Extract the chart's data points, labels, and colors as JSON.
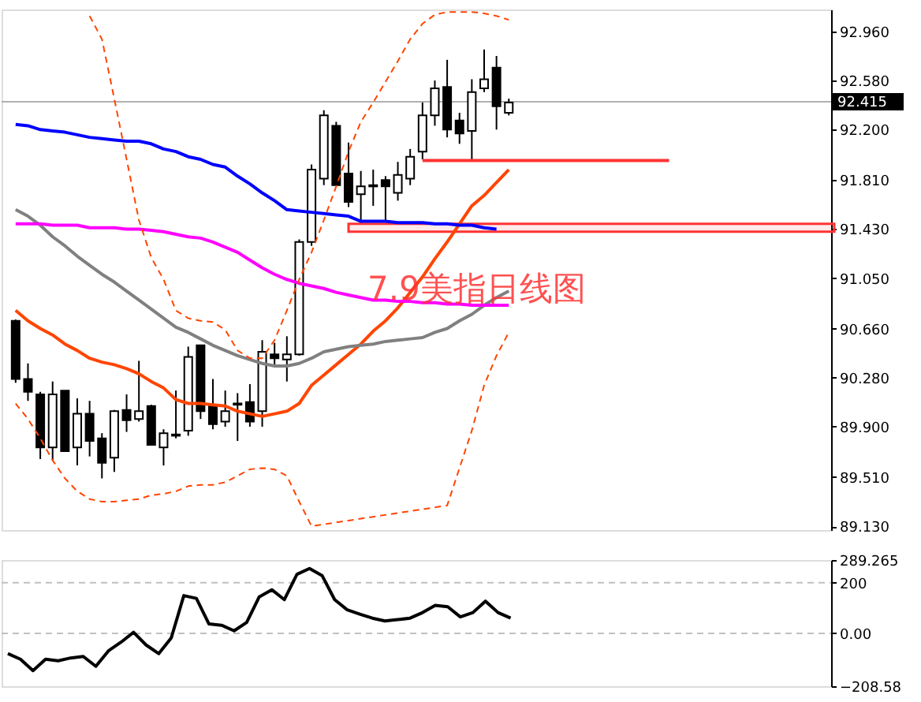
{
  "chart_data": [
    {
      "type": "candlestick",
      "categories": [
        null,
        null,
        null,
        null,
        null,
        null,
        null,
        null,
        null,
        null,
        null,
        null,
        null,
        null,
        null,
        null,
        null,
        null,
        null,
        null,
        null,
        null,
        null,
        null,
        null,
        null,
        null,
        null,
        null,
        null,
        null,
        null,
        null,
        null,
        null,
        null,
        null,
        null,
        null,
        null,
        null,
        null,
        null,
        null,
        null,
        null,
        null,
        null,
        null,
        null,
        null,
        null,
        null,
        null,
        null,
        null,
        null,
        null,
        null,
        null,
        null,
        null,
        null,
        null,
        null,
        null
      ],
      "ohlc": [
        [
          90.72,
          90.73,
          90.24,
          90.27
        ],
        [
          90.27,
          90.39,
          90.1,
          90.17
        ],
        [
          90.15,
          90.17,
          89.65,
          89.74
        ],
        [
          89.74,
          90.25,
          89.64,
          90.15
        ],
        [
          90.18,
          90.18,
          89.71,
          89.71
        ],
        [
          89.74,
          90.12,
          89.6,
          90.0
        ],
        [
          90.0,
          90.1,
          89.67,
          89.79
        ],
        [
          89.81,
          89.85,
          89.5,
          89.62
        ],
        [
          89.66,
          90.03,
          89.55,
          90.02
        ],
        [
          90.03,
          90.15,
          89.86,
          89.95
        ],
        [
          89.96,
          90.41,
          89.94,
          90.02
        ],
        [
          90.06,
          90.07,
          89.76,
          89.76
        ],
        [
          89.74,
          89.88,
          89.6,
          89.85
        ],
        [
          89.83,
          90.18,
          89.81,
          89.84
        ],
        [
          89.87,
          90.52,
          89.83,
          90.44
        ],
        [
          90.53,
          90.53,
          89.96,
          90.02
        ],
        [
          90.06,
          90.27,
          89.88,
          89.92
        ],
        [
          89.94,
          90.18,
          89.9,
          90.02
        ],
        [
          90.08,
          90.16,
          89.79,
          90.07
        ],
        [
          90.09,
          90.23,
          89.9,
          89.94
        ],
        [
          90.02,
          90.57,
          89.9,
          90.48
        ],
        [
          90.46,
          90.55,
          90.37,
          90.43
        ],
        [
          90.42,
          90.6,
          90.25,
          90.46
        ],
        [
          90.46,
          91.35,
          90.45,
          91.33
        ],
        [
          91.33,
          91.93,
          91.3,
          91.89
        ],
        [
          91.82,
          92.35,
          91.77,
          92.31
        ],
        [
          92.23,
          92.26,
          91.77,
          91.77
        ],
        [
          91.86,
          92.1,
          91.6,
          91.64
        ],
        [
          91.7,
          91.88,
          91.48,
          91.76
        ],
        [
          91.76,
          91.89,
          91.61,
          91.77
        ],
        [
          91.81,
          91.84,
          91.5,
          91.76
        ],
        [
          91.71,
          91.95,
          91.65,
          91.85
        ],
        [
          91.82,
          92.05,
          91.77,
          91.99
        ],
        [
          92.03,
          92.41,
          91.97,
          92.31
        ],
        [
          92.31,
          92.58,
          92.23,
          92.52
        ],
        [
          92.53,
          92.74,
          92.14,
          92.2
        ],
        [
          92.27,
          92.33,
          92.09,
          92.17
        ],
        [
          92.19,
          92.59,
          91.97,
          92.49
        ],
        [
          92.52,
          92.82,
          92.49,
          92.59
        ],
        [
          92.68,
          92.77,
          92.2,
          92.38
        ],
        [
          92.33,
          92.44,
          92.31,
          92.41
        ],
        null,
        null,
        null,
        null,
        null,
        null,
        null,
        null,
        null,
        null,
        null,
        null,
        null,
        null,
        null,
        null,
        null,
        null,
        null,
        null,
        null,
        null,
        null,
        null,
        null
      ],
      "series": [
        {
          "type": "line",
          "color": "#ff4500",
          "values": [
            90.8,
            90.72,
            90.66,
            90.61,
            90.54,
            90.49,
            90.43,
            90.4,
            90.38,
            90.35,
            90.31,
            90.25,
            90.2,
            90.11,
            90.08,
            90.08,
            90.07,
            90.06,
            90.02,
            90.0,
            89.98,
            90.0,
            90.02,
            90.08,
            90.22,
            90.3,
            90.38,
            90.46,
            90.54,
            90.64,
            90.72,
            90.82,
            90.94,
            91.06,
            91.2,
            91.33,
            91.47,
            91.61,
            91.69,
            91.79,
            91.89,
            null,
            null,
            null,
            null,
            null,
            null,
            null,
            null,
            null,
            null,
            null,
            null,
            null,
            null,
            null,
            null,
            null,
            null,
            null,
            null,
            null,
            null,
            null,
            null,
            null
          ]
        },
        {
          "type": "line",
          "color": "#808080",
          "values": [
            91.58,
            91.53,
            91.46,
            91.37,
            91.3,
            91.22,
            91.15,
            91.08,
            91.02,
            90.95,
            90.88,
            90.81,
            90.74,
            90.67,
            90.63,
            90.58,
            90.53,
            90.49,
            90.45,
            90.42,
            90.39,
            90.37,
            90.37,
            90.39,
            90.43,
            90.48,
            90.5,
            90.52,
            90.53,
            90.54,
            90.56,
            90.57,
            90.58,
            90.59,
            90.63,
            90.66,
            90.72,
            90.77,
            90.84,
            90.9,
            90.95,
            null,
            null,
            null,
            null,
            null,
            null,
            null,
            null,
            null,
            null,
            null,
            null,
            null,
            null,
            null,
            null,
            null,
            null,
            null,
            null,
            null,
            null,
            null,
            null,
            null
          ]
        },
        {
          "type": "line",
          "color": "#0000ff",
          "values": [
            92.24,
            92.23,
            92.2,
            92.19,
            92.18,
            92.16,
            92.14,
            92.13,
            92.12,
            92.11,
            92.11,
            92.09,
            92.05,
            92.03,
            91.99,
            91.97,
            91.93,
            91.91,
            91.84,
            91.78,
            91.71,
            91.65,
            91.58,
            91.57,
            91.56,
            91.55,
            91.54,
            91.53,
            91.49,
            91.49,
            91.49,
            91.48,
            91.48,
            91.48,
            91.47,
            91.47,
            91.46,
            91.46,
            91.44,
            91.43,
            null,
            null,
            null,
            null,
            null,
            null,
            null,
            null,
            null,
            null,
            null,
            null,
            null,
            null,
            null,
            null,
            null,
            null,
            null,
            null,
            null,
            null,
            null,
            null,
            null,
            null
          ]
        },
        {
          "type": "line",
          "color": "#ff00ff",
          "values": [
            91.47,
            91.47,
            91.47,
            91.46,
            91.46,
            91.46,
            91.44,
            91.44,
            91.44,
            91.43,
            91.43,
            91.42,
            91.41,
            91.39,
            91.37,
            91.36,
            91.33,
            91.29,
            91.25,
            91.19,
            91.13,
            91.08,
            91.04,
            91.01,
            90.99,
            90.97,
            90.94,
            90.92,
            90.9,
            90.88,
            90.88,
            90.87,
            90.87,
            90.86,
            90.86,
            90.85,
            90.85,
            90.84,
            90.84,
            90.84,
            90.84,
            null,
            null,
            null,
            null,
            null,
            null,
            null,
            null,
            null,
            null,
            null,
            null,
            null,
            null,
            null,
            null,
            null,
            null,
            null,
            null,
            null,
            null,
            null,
            null,
            null
          ]
        },
        {
          "type": "line",
          "color": "#ff4500",
          "line_style": "dashed",
          "values": [
            null,
            null,
            null,
            null,
            null,
            null,
            93.08,
            92.9,
            92.44,
            91.97,
            91.5,
            91.21,
            91.04,
            90.8,
            90.74,
            90.72,
            90.71,
            90.65,
            90.49,
            90.43,
            90.43,
            90.57,
            90.8,
            91.04,
            91.25,
            91.5,
            91.76,
            92.03,
            92.26,
            92.41,
            92.57,
            92.73,
            92.9,
            93.02,
            93.09,
            93.11,
            93.11,
            93.11,
            93.1,
            93.08,
            93.05,
            null,
            null,
            null,
            null,
            null,
            null,
            null,
            null,
            null,
            null,
            null,
            null,
            null,
            null,
            null,
            null,
            null,
            null,
            null,
            null,
            null,
            null,
            null,
            null,
            null
          ]
        },
        {
          "type": "line",
          "color": "#ff4500",
          "line_style": "dashed",
          "values": [
            90.08,
            89.96,
            89.81,
            89.64,
            89.5,
            89.4,
            89.34,
            89.32,
            89.32,
            89.33,
            89.34,
            89.37,
            89.38,
            89.4,
            89.44,
            89.45,
            89.45,
            89.47,
            89.52,
            89.57,
            89.58,
            89.57,
            89.52,
            89.32,
            89.13,
            null,
            null,
            null,
            null,
            null,
            null,
            null,
            null,
            null,
            null,
            89.29,
            89.58,
            89.87,
            90.22,
            90.45,
            90.63,
            null,
            null,
            null,
            null,
            null,
            null,
            null,
            null,
            null,
            null,
            null,
            null,
            null,
            null,
            null,
            null,
            null,
            null,
            null,
            null,
            null,
            null,
            null,
            null,
            null
          ]
        },
        {
          "type": "line",
          "color": "#ff3333",
          "values": [
            null,
            null,
            null,
            null,
            null,
            null,
            null,
            null,
            null,
            null,
            null,
            null,
            null,
            null,
            null,
            null,
            null,
            null,
            null,
            null,
            null,
            null,
            null,
            null,
            null,
            null,
            null,
            null,
            null,
            null,
            null,
            null,
            null,
            91.96,
            91.96,
            91.96,
            91.96,
            91.96,
            91.96,
            91.96,
            91.96,
            91.96,
            91.96,
            91.96,
            91.96,
            91.96,
            91.96,
            91.96,
            91.96,
            91.96,
            91.96,
            91.96,
            91.96,
            91.96,
            null,
            null,
            null,
            null,
            null,
            null,
            null,
            null,
            null,
            null,
            null,
            null
          ]
        }
      ],
      "ref_lines": [
        {
          "axis": "y",
          "value": 92.415,
          "label": "92.415",
          "color": "#b0b0b0"
        }
      ],
      "bands": [
        {
          "axis": "y",
          "from": 91.41,
          "to": 91.47,
          "color": "#ff3333"
        }
      ],
      "annotations": [
        "7.9美指日线图"
      ],
      "ylim": [
        89.1,
        93.13
      ],
      "yticks": [
        {
          "value": 92.96,
          "label": "92.960"
        },
        {
          "value": 92.58,
          "label": "92.580"
        },
        {
          "value": 92.2,
          "label": "92.200"
        },
        {
          "value": 91.81,
          "label": "91.810"
        },
        {
          "value": 91.43,
          "label": "91.430"
        },
        {
          "value": 91.05,
          "label": "91.050"
        },
        {
          "value": 90.66,
          "label": "90.660"
        },
        {
          "value": 90.28,
          "label": "90.280"
        },
        {
          "value": 89.9,
          "label": "89.900"
        },
        {
          "value": 89.51,
          "label": "89.510"
        },
        {
          "value": 89.13,
          "label": "89.130"
        }
      ],
      "grid": false,
      "tick_labels": "y"
    },
    {
      "type": "line",
      "categories": [
        null,
        null,
        null,
        null,
        null,
        null,
        null,
        null,
        null,
        null,
        null,
        null,
        null,
        null,
        null,
        null,
        null,
        null,
        null,
        null,
        null,
        null,
        null,
        null,
        null,
        null,
        null,
        null,
        null,
        null,
        null,
        null,
        null,
        null,
        null,
        null,
        null,
        null,
        null,
        null,
        null,
        null,
        null,
        null,
        null,
        null,
        null,
        null,
        null,
        null,
        null,
        null,
        null,
        null,
        null,
        null,
        null,
        null,
        null,
        null,
        null,
        null,
        null,
        null,
        null,
        null
      ],
      "series": [
        {
          "color": "#000000",
          "values": [
            -80,
            -102,
            -147,
            -102,
            -108,
            -97,
            -91,
            -130,
            -69,
            -35,
            4,
            -46,
            -80,
            -18,
            149,
            138,
            37,
            32,
            10,
            43,
            144,
            172,
            133,
            233,
            256,
            228,
            133,
            93,
            76,
            60,
            49,
            54,
            60,
            82,
            110,
            105,
            65,
            82,
            127,
            82,
            60,
            null,
            null,
            null,
            null,
            null,
            null,
            null,
            null,
            null,
            null,
            null,
            null,
            null,
            null,
            null,
            null,
            null,
            null,
            null,
            null,
            null,
            null,
            null,
            null,
            null
          ]
        }
      ],
      "ref_lines": [
        {
          "axis": "y",
          "value": 200,
          "color": "#c0c0c0",
          "line_style": "dashed"
        },
        {
          "axis": "y",
          "value": 0,
          "color": "#c0c0c0",
          "line_style": "dashed"
        }
      ],
      "ylim": [
        -208.58,
        289.265
      ],
      "yticks": [
        289.265,
        200,
        {
          "value": 0,
          "label": "0.00"
        },
        -208.58
      ],
      "grid": false,
      "tick_labels": "y"
    }
  ]
}
